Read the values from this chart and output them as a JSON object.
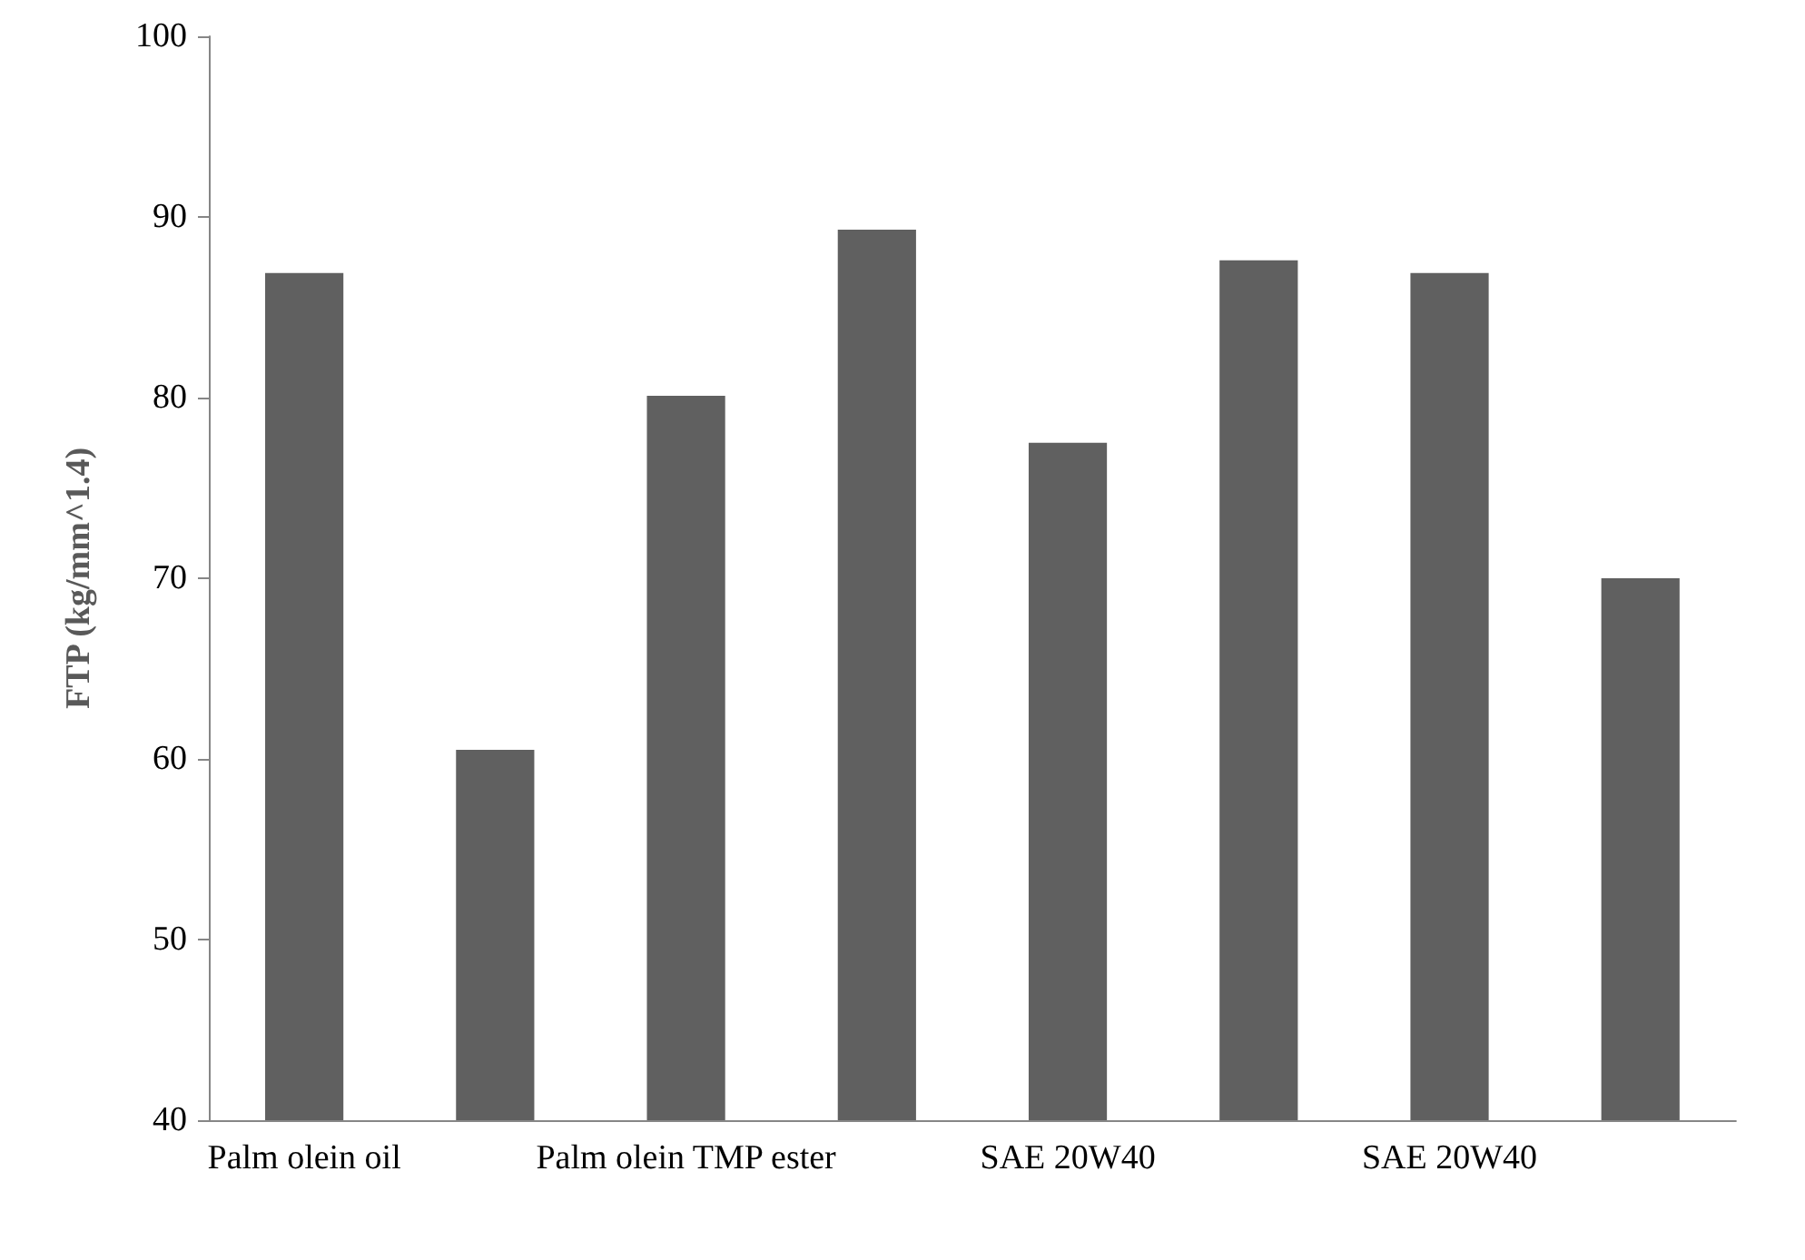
{
  "chart_data": {
    "type": "bar",
    "ylabel": "FTP (kg/mm^1.4)",
    "categories": [
      "Palm olein oil",
      null,
      "Palm olein TMP ester",
      null,
      "SAE 20W40",
      null,
      "SAE 20W40",
      null
    ],
    "values": [
      86.9,
      60.5,
      80.1,
      89.3,
      77.5,
      87.6,
      86.9,
      70.0
    ],
    "color": "#606060",
    "ylim": [
      40,
      100
    ],
    "yticks": [
      40,
      50,
      60,
      70,
      80,
      90,
      100
    ]
  }
}
